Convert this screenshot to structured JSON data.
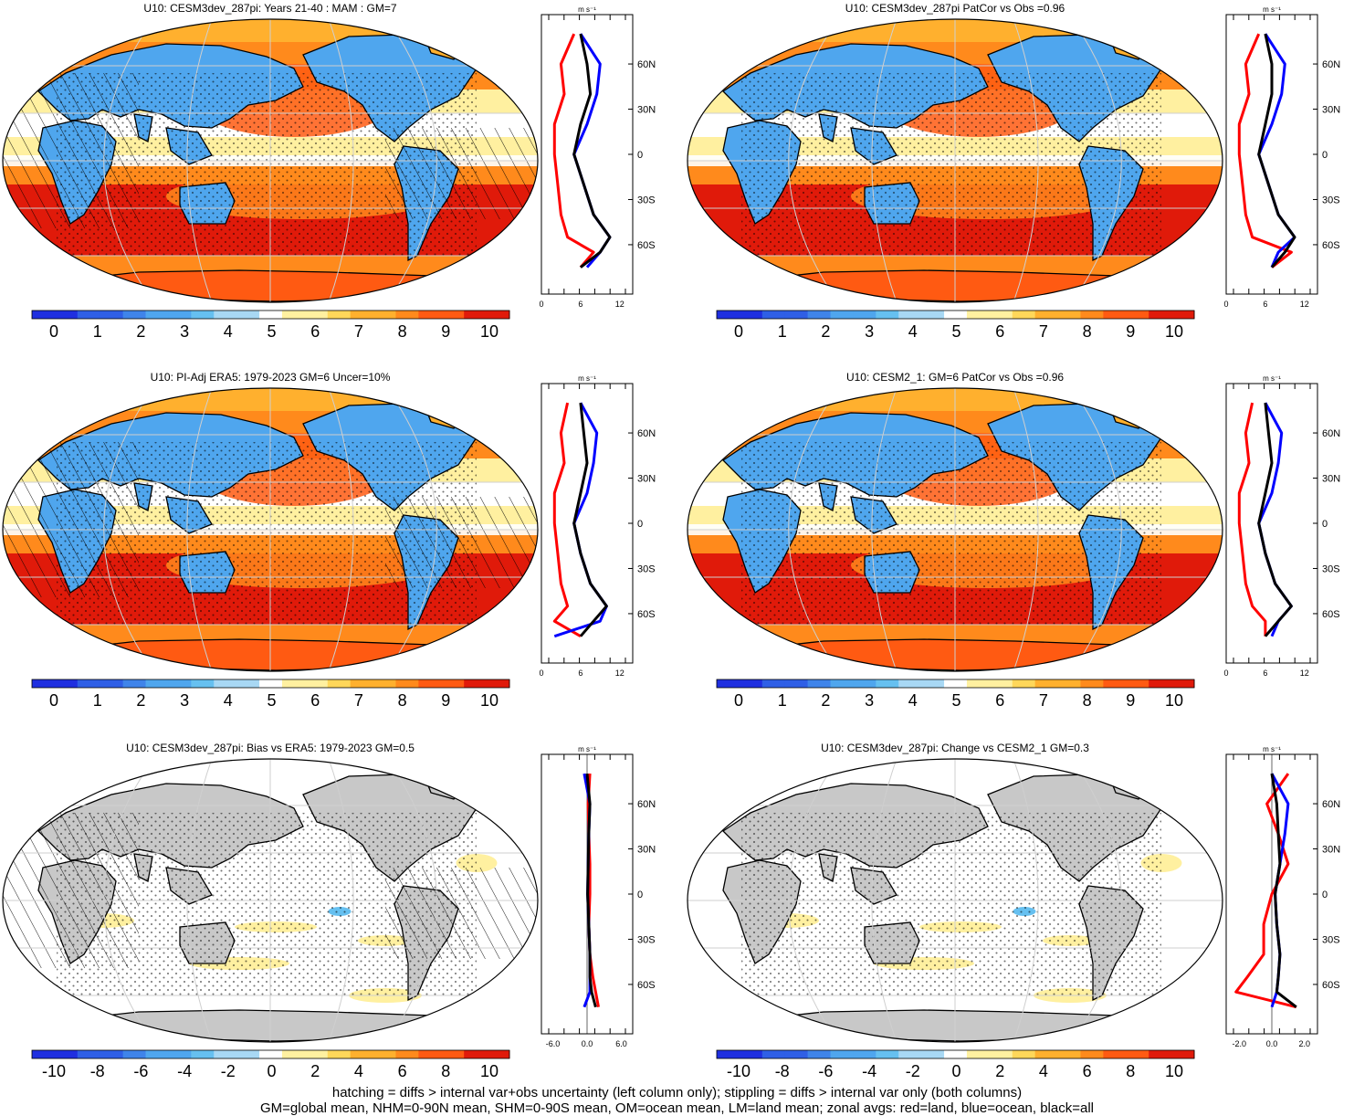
{
  "colors": {
    "wind_ramp": [
      "#1f2fe0",
      "#2f5fe6",
      "#3f84ea",
      "#4fa6ee",
      "#66c0f0",
      "#a8d8f4",
      "#ffffff",
      "#fff0a0",
      "#ffd75a",
      "#ffb02e",
      "#ff8a1c",
      "#ff5a12",
      "#e01a0a"
    ],
    "land_gray": "#c8c8c8",
    "zonal_land": "#ff0000",
    "zonal_ocean": "#0000ff",
    "zonal_all": "#000000",
    "grid": "#cfcfcf"
  },
  "lat_labels": [
    "60N",
    "30N",
    "0",
    "30S",
    "60S"
  ],
  "zonal_units": "m s⁻¹",
  "panels": [
    {
      "id": "p1",
      "title": "U10: CESM3dev_287pi: Years 21-40 : MAM : GM=7",
      "kind": "mean",
      "hatch": true,
      "stipple": true,
      "colorbar": [
        "0",
        "1",
        "2",
        "3",
        "4",
        "5",
        "6",
        "7",
        "8",
        "9",
        "10"
      ],
      "zonal_ticks": [
        "0",
        "6",
        "12"
      ]
    },
    {
      "id": "p2",
      "title": "U10: CESM3dev_287pi PatCor vs Obs =0.96",
      "kind": "mean",
      "hatch": false,
      "stipple": true,
      "colorbar": [
        "0",
        "1",
        "2",
        "3",
        "4",
        "5",
        "6",
        "7",
        "8",
        "9",
        "10"
      ],
      "zonal_ticks": [
        "0",
        "6",
        "12"
      ]
    },
    {
      "id": "p3",
      "title": "U10: PI-Adj ERA5: 1979-2023 GM=6 Uncer=10%",
      "kind": "mean",
      "hatch": true,
      "stipple": true,
      "colorbar": [
        "0",
        "1",
        "2",
        "3",
        "4",
        "5",
        "6",
        "7",
        "8",
        "9",
        "10"
      ],
      "zonal_ticks": [
        "0",
        "6",
        "12"
      ]
    },
    {
      "id": "p4",
      "title": "U10: CESM2_1: GM=6 PatCor vs Obs =0.96",
      "kind": "mean",
      "hatch": false,
      "stipple": true,
      "colorbar": [
        "0",
        "1",
        "2",
        "3",
        "4",
        "5",
        "6",
        "7",
        "8",
        "9",
        "10"
      ],
      "zonal_ticks": [
        "0",
        "6",
        "12"
      ]
    },
    {
      "id": "p5",
      "title": "U10: CESM3dev_287pi: Bias vs ERA5: 1979-2023 GM=0.5",
      "kind": "diff",
      "hatch": true,
      "stipple": true,
      "colorbar": [
        "-10",
        "-8",
        "-6",
        "-4",
        "-2",
        "0",
        "2",
        "4",
        "6",
        "8",
        "10"
      ],
      "zonal_ticks": [
        "-6.0",
        "0.0",
        "6.0"
      ]
    },
    {
      "id": "p6",
      "title": "U10: CESM3dev_287pi: Change vs CESM2_1 GM=0.3",
      "kind": "diff",
      "hatch": false,
      "stipple": true,
      "colorbar": [
        "-10",
        "-8",
        "-6",
        "-4",
        "-2",
        "0",
        "2",
        "4",
        "6",
        "8",
        "10"
      ],
      "zonal_ticks": [
        "-2.0",
        "0.0",
        "2.0"
      ]
    }
  ],
  "caption": {
    "line1": "hatching = diffs > internal var+obs uncertainty (left column only); stippling = diffs > internal var only (both columns)",
    "line2": "GM=global mean, NHM=0-90N mean, SHM=0-90S mean, OM=ocean mean, LM=land mean; zonal avgs: red=land, blue=ocean, black=all"
  },
  "chart_data": [
    {
      "type": "heatmap",
      "title": "U10: CESM3dev_287pi: Years 21-40 : MAM : GM=7",
      "units": "m s-1",
      "colorbar_range": [
        0,
        10
      ],
      "zonal_profile": {
        "lat": [
          80,
          60,
          40,
          20,
          0,
          -20,
          -40,
          -55,
          -65,
          -75
        ],
        "all": [
          6,
          7,
          7.5,
          6,
          5,
          6.5,
          8,
          10.5,
          9,
          6
        ],
        "ocean": [
          6,
          9,
          8.5,
          7,
          5,
          6.5,
          8,
          10.5,
          9,
          7
        ],
        "land": [
          5,
          3,
          3.5,
          2,
          2,
          2.5,
          3,
          4,
          8,
          6
        ],
        "xlim": [
          0,
          14
        ]
      }
    },
    {
      "type": "heatmap",
      "title": "U10: CESM3dev_287pi PatCor vs Obs =0.96",
      "units": "m s-1",
      "colorbar_range": [
        0,
        10
      ],
      "zonal_profile": {
        "lat": [
          80,
          60,
          40,
          20,
          0,
          -20,
          -40,
          -55,
          -65,
          -75
        ],
        "all": [
          6,
          7,
          7,
          6,
          5,
          6.5,
          8,
          10.5,
          9,
          7
        ],
        "ocean": [
          6,
          9,
          8.5,
          7,
          5,
          6.5,
          8,
          10.5,
          8,
          7
        ],
        "land": [
          5,
          3,
          3.5,
          2,
          2,
          2.5,
          3,
          4,
          10,
          7
        ],
        "xlim": [
          0,
          14
        ]
      }
    },
    {
      "type": "heatmap",
      "title": "U10: PI-Adj ERA5: 1979-2023 GM=6 Uncer=10%",
      "units": "m s-1",
      "colorbar_range": [
        0,
        10
      ],
      "zonal_profile": {
        "lat": [
          80,
          60,
          40,
          20,
          0,
          -20,
          -40,
          -55,
          -65,
          -75
        ],
        "all": [
          6,
          6.5,
          7,
          6,
          5,
          6,
          7.5,
          10,
          8,
          6
        ],
        "ocean": [
          6,
          8.5,
          8,
          7,
          5,
          6,
          7.5,
          10,
          9,
          2
        ],
        "land": [
          4,
          3,
          3.5,
          2,
          2,
          2.5,
          3,
          4,
          2,
          6
        ],
        "xlim": [
          0,
          14
        ]
      }
    },
    {
      "type": "heatmap",
      "title": "U10: CESM2_1: GM=6 PatCor vs Obs =0.96",
      "units": "m s-1",
      "colorbar_range": [
        0,
        10
      ],
      "zonal_profile": {
        "lat": [
          80,
          60,
          40,
          20,
          0,
          -20,
          -40,
          -55,
          -65,
          -75
        ],
        "all": [
          6,
          6.5,
          7,
          6,
          5,
          6,
          7.5,
          10,
          8,
          6
        ],
        "ocean": [
          6,
          8.5,
          8,
          7,
          5,
          6,
          7.5,
          10,
          8,
          7
        ],
        "land": [
          4,
          3,
          3.5,
          2,
          2,
          2.5,
          3,
          4,
          6,
          6
        ],
        "xlim": [
          0,
          14
        ]
      }
    },
    {
      "type": "heatmap",
      "title": "U10: CESM3dev_287pi: Bias vs ERA5: 1979-2023 GM=0.5",
      "units": "m s-1",
      "colorbar_range": [
        -10,
        10
      ],
      "zonal_profile": {
        "lat": [
          80,
          60,
          40,
          20,
          0,
          -20,
          -40,
          -55,
          -65,
          -75
        ],
        "all": [
          0,
          0.5,
          0.3,
          0.2,
          0.1,
          0.3,
          0.5,
          0.5,
          0.8,
          1.5
        ],
        "ocean": [
          -0.5,
          0.5,
          0.3,
          0.2,
          0.1,
          0.3,
          0.5,
          0.5,
          0.5,
          -0.5
        ],
        "land": [
          0.5,
          0.2,
          0.3,
          0.5,
          0.5,
          0.3,
          0.5,
          1,
          1.5,
          2
        ],
        "xlim": [
          -8,
          8
        ]
      }
    },
    {
      "type": "heatmap",
      "title": "U10: CESM3dev_287pi: Change vs CESM2_1 GM=0.3",
      "units": "m s-1",
      "colorbar_range": [
        -10,
        10
      ],
      "zonal_profile": {
        "lat": [
          80,
          60,
          40,
          20,
          0,
          -20,
          -40,
          -55,
          -65,
          -75
        ],
        "all": [
          0,
          0.3,
          0.4,
          0.5,
          0.2,
          0.3,
          0.5,
          0.4,
          0.3,
          1.5
        ],
        "ocean": [
          0,
          1,
          0.8,
          0.5,
          0.2,
          0.3,
          0.5,
          0.4,
          0.3,
          0
        ],
        "land": [
          1,
          -0.3,
          0.4,
          1,
          0,
          -0.5,
          -0.5,
          -1.5,
          -2.2,
          1.5
        ],
        "xlim": [
          -2.8,
          2.8
        ]
      }
    }
  ]
}
